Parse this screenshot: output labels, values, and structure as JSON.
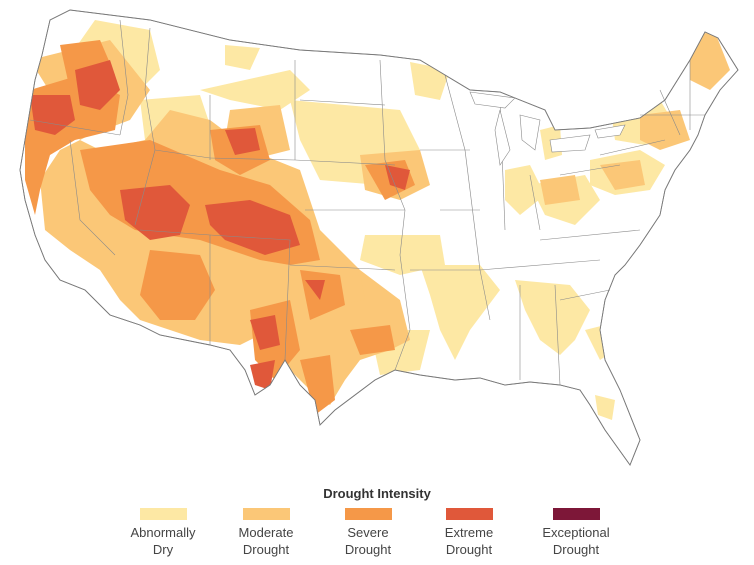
{
  "legend": {
    "title": "Drought Intensity",
    "items": [
      {
        "line1": "Abnormally",
        "line2": "Dry",
        "color": "#fde8a4"
      },
      {
        "line1": "Moderate",
        "line2": "Drought",
        "color": "#fbc777"
      },
      {
        "line1": "Severe",
        "line2": "Drought",
        "color": "#f59848"
      },
      {
        "line1": "Extreme",
        "line2": "Drought",
        "color": "#e0583a"
      },
      {
        "line1": "Exceptional",
        "line2": "Drought",
        "color": "#7d1738"
      }
    ]
  },
  "map": {
    "land_color": "#ffffff",
    "border_color": "#7a7a7a"
  }
}
